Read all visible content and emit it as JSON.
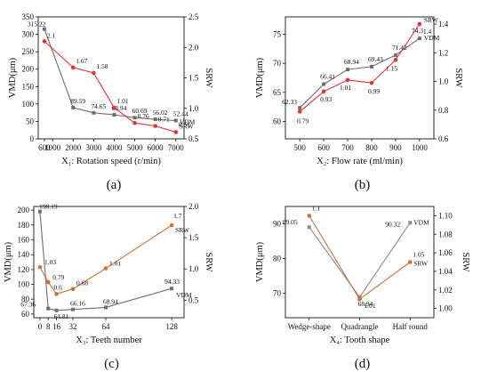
{
  "chart_data": [
    {
      "id": "a",
      "type": "line",
      "caption": "(a)",
      "xlabel": "X₁: Rotation speed (r/min)",
      "ylabel_left": "VMD(μm)",
      "ylabel_right": "SRW",
      "x_scale": "linear",
      "xlim": [
        300,
        7400
      ],
      "xticks": [
        600,
        1000,
        2000,
        3000,
        4000,
        5000,
        6000,
        7000
      ],
      "ylim_left": [
        0,
        350
      ],
      "yticks_left": [
        0,
        50,
        100,
        150,
        200,
        250,
        300,
        350
      ],
      "ylim_right": [
        0.5,
        2.5
      ],
      "yticks_right": [
        0.5,
        1.0,
        1.5,
        2.0,
        2.5
      ],
      "series": [
        {
          "name": "VDM",
          "axis": "left",
          "color": "#6e6e6e",
          "x": [
            600,
            2000,
            3000,
            4000,
            5000,
            6000,
            7000
          ],
          "values": [
            315.22,
            89.59,
            74.65,
            68.94,
            60.69,
            56.02,
            52.44
          ],
          "labels": [
            "315.22",
            "89.59",
            "74.65",
            "68.94",
            "60.69",
            "56.02",
            "52.44"
          ]
        },
        {
          "name": "SRW",
          "axis": "right",
          "color": "#e8323a",
          "x": [
            600,
            2000,
            3000,
            4000,
            5000,
            6000,
            7000
          ],
          "values": [
            2.1,
            1.67,
            1.58,
            1.01,
            0.76,
            0.71,
            0.61
          ],
          "labels": [
            "2.1",
            "1.67",
            "1.58",
            "1.01",
            "0.76",
            "0.71",
            "0.61"
          ]
        }
      ]
    },
    {
      "id": "b",
      "type": "line",
      "caption": "(b)",
      "xlabel": "X₂: Flow rate (ml/min)",
      "ylabel_left": "VMD(μm)",
      "ylabel_right": "SRW",
      "x_scale": "linear",
      "xlim": [
        440,
        1060
      ],
      "xticks": [
        500,
        600,
        700,
        800,
        900,
        1000
      ],
      "ylim_left": [
        57,
        78
      ],
      "yticks_left": [
        60,
        65,
        70,
        75
      ],
      "ylim_right": [
        0.6,
        1.45
      ],
      "yticks_right": [
        0.6,
        0.8,
        1.0,
        1.2,
        1.4
      ],
      "series": [
        {
          "name": "VDM",
          "axis": "left",
          "color": "#6e6e6e",
          "x": [
            500,
            600,
            700,
            800,
            900,
            1000
          ],
          "values": [
            62.33,
            66.41,
            68.94,
            69.43,
            71.42,
            74.3
          ],
          "labels": [
            "62.33",
            "66.41",
            "68.94",
            "69.43",
            "71.42",
            "74.3"
          ]
        },
        {
          "name": "SRW",
          "axis": "right",
          "color": "#e8323a",
          "x": [
            500,
            600,
            700,
            800,
            900,
            1000
          ],
          "values": [
            0.79,
            0.93,
            1.01,
            0.99,
            1.15,
            1.4
          ],
          "labels": [
            "0.79",
            "0.93",
            "1.01",
            "0.99",
            "1.15",
            "1.4"
          ]
        }
      ]
    },
    {
      "id": "c",
      "type": "line",
      "caption": "(c)",
      "xlabel": "X₃: Teeth number",
      "ylabel_left": "VMD(μm)",
      "ylabel_right": "SRW",
      "x_scale": "linear",
      "xlim": [
        -6,
        140
      ],
      "xticks": [
        0,
        8,
        16,
        32,
        64,
        128
      ],
      "ylim_left": [
        55,
        205
      ],
      "yticks_left": [
        60,
        80,
        100,
        120,
        140,
        160,
        180,
        200
      ],
      "ylim_right": [
        0.22,
        2.0
      ],
      "yticks_right": [
        0.5,
        1.0,
        1.5,
        2.0
      ],
      "series": [
        {
          "name": "VDM",
          "axis": "left",
          "color": "#6e6e6e",
          "x": [
            0,
            8,
            16,
            32,
            64,
            128
          ],
          "values": [
            198.19,
            67.36,
            64.81,
            66.16,
            68.94,
            94.33
          ],
          "labels": [
            "198.19",
            "67.36",
            "64.81",
            "66.16",
            "68.94",
            "94.33"
          ]
        },
        {
          "name": "SRW",
          "axis": "right",
          "color": "#cc7236",
          "x": [
            0,
            8,
            16,
            32,
            64,
            128
          ],
          "values": [
            1.03,
            0.79,
            0.6,
            0.68,
            1.01,
            1.7
          ],
          "labels": [
            "1.03",
            "0.79",
            "0.6",
            "0.68",
            "1.01",
            "1.7"
          ]
        }
      ]
    },
    {
      "id": "d",
      "type": "line",
      "caption": "(d)",
      "xlabel": "X₄: Tooth shape",
      "ylabel_left": "VMD(μm)",
      "ylabel_right": "SRW",
      "x_scale": "category",
      "categories": [
        "Wedge-shape",
        "Quadrangle",
        "Half round"
      ],
      "ylim_left": [
        63,
        95
      ],
      "yticks_left": [
        70,
        80,
        90
      ],
      "ylim_right": [
        0.99,
        1.11
      ],
      "yticks_right": [
        1.0,
        1.02,
        1.04,
        1.06,
        1.08,
        1.1
      ],
      "series": [
        {
          "name": "VDM",
          "axis": "left",
          "color": "#8a8a8a",
          "values": [
            89.05,
            68.94,
            90.32
          ],
          "labels": [
            "89.05",
            "68.94",
            "90.32"
          ]
        },
        {
          "name": "SRW",
          "axis": "right",
          "color": "#c8733a",
          "values": [
            1.1,
            1.01,
            1.05
          ],
          "labels": [
            "1.1",
            "1.01",
            "1.05"
          ]
        }
      ]
    }
  ]
}
